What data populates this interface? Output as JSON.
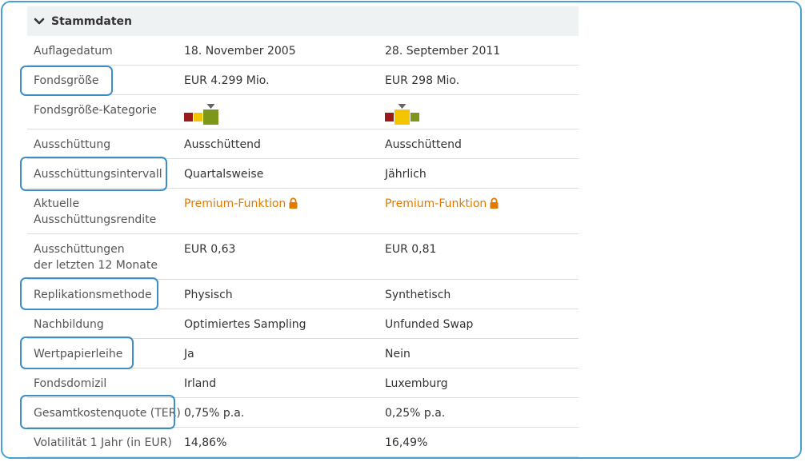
{
  "section": {
    "title": "Stammdaten",
    "icon": "chevron-down-icon",
    "expanded": true
  },
  "rows": [
    {
      "label": "Auflagedatum",
      "v1": "18. November 2005",
      "v2": "28. September 2011"
    },
    {
      "label": "Fondsgröße",
      "v1": "EUR 4.299 Mio.",
      "v2": "EUR 298 Mio."
    },
    {
      "label": "Fondsgröße-Kategorie",
      "v1_level": 3,
      "v2_level": 2,
      "levels": 3
    },
    {
      "label": "Ausschüttung",
      "v1": "Ausschüttend",
      "v2": "Ausschüttend"
    },
    {
      "label": "Ausschüttungsintervall",
      "v1": "Quartalsweise",
      "v2": "Jährlich"
    },
    {
      "label_line1": "Aktuelle",
      "label_line2": "Ausschüttungsrendite",
      "v1": "Premium-Funktion",
      "v2": "Premium-Funktion",
      "icon": "lock-icon"
    },
    {
      "label_line1": "Ausschüttungen",
      "label_line2": "der letzten 12 Monate",
      "v1": "EUR 0,63",
      "v2": "EUR 0,81"
    },
    {
      "label": "Replikationsmethode",
      "v1": "Physisch",
      "v2": "Synthetisch"
    },
    {
      "label": "Nachbildung",
      "v1": "Optimiertes Sampling",
      "v2": "Unfunded Swap"
    },
    {
      "label": "Wertpapierleihe",
      "v1": "Ja",
      "v2": "Nein"
    },
    {
      "label": "Fondsdomizil",
      "v1": "Irland",
      "v2": "Luxemburg"
    },
    {
      "label": "Gesamtkostenquote (TER)",
      "v1": "0,75% p.a.",
      "v2": "0,25% p.a."
    },
    {
      "label": "Volatilität 1 Jahr (in EUR)",
      "v1": "14,86%",
      "v2": "16,49%"
    }
  ],
  "highlighted_rows": [
    "Fondsgröße",
    "Ausschüttungsintervall",
    "Replikationsmethode",
    "Wertpapierleihe",
    "Gesamtkostenquote (TER)"
  ],
  "colors": {
    "frame": "#4a9fd1",
    "highlight": "#3d8ec6",
    "premium": "#e07b00",
    "size_small": "#9b1b1b",
    "size_medium": "#f2c500",
    "size_large": "#7e961a",
    "size_marker": "#666666",
    "header_bg": "#eff2f3"
  }
}
